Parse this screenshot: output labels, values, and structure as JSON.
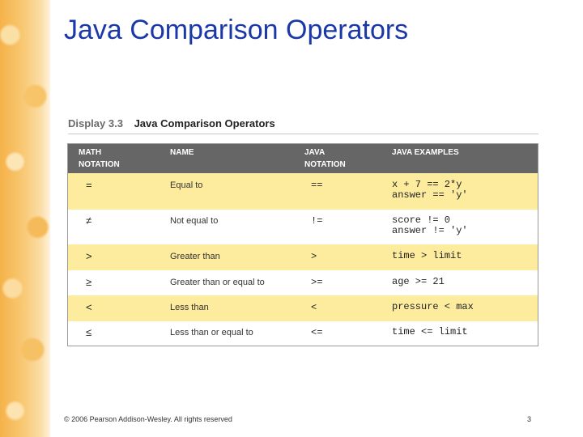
{
  "slide": {
    "title": "Java Comparison Operators",
    "footer": "© 2006 Pearson Addison-Wesley. All rights reserved",
    "page_number": "3"
  },
  "display": {
    "number": "Display 3.3",
    "title": "Java Comparison Operators"
  },
  "table": {
    "headers": {
      "math": "MATH\nNOTATION",
      "name": "NAME",
      "java": "JAVA\nNOTATION",
      "examples": "JAVA EXAMPLES"
    },
    "rows": [
      {
        "math": "=",
        "name": "Equal to",
        "java": "==",
        "examples": "x + 7 == 2*y\nanswer == 'y'"
      },
      {
        "math": "≠",
        "name": "Not equal to",
        "java": "!=",
        "examples": "score != 0\nanswer != 'y'"
      },
      {
        "math": ">",
        "name": "Greater than",
        "java": ">",
        "examples": "time > limit"
      },
      {
        "math": "≥",
        "name": "Greater than or equal to",
        "java": ">=",
        "examples": "age >= 21"
      },
      {
        "math": "<",
        "name": "Less than",
        "java": "<",
        "examples": "pressure < max"
      },
      {
        "math": "≤",
        "name": "Less than or equal to",
        "java": "<=",
        "examples": "time <= limit"
      }
    ]
  },
  "colors": {
    "title": "#1a38a8",
    "header_bg": "#666666",
    "row_highlight": "#fdec9e",
    "side_strip": "#f5b24a"
  }
}
